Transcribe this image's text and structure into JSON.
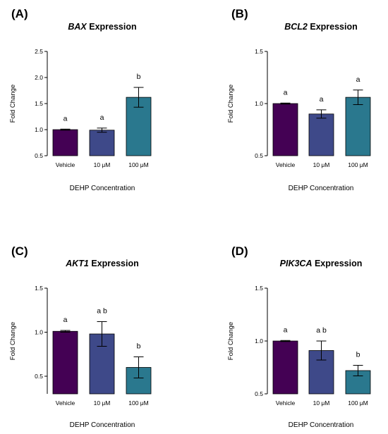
{
  "chart_data": [
    {
      "type": "bar",
      "panel": "(A)",
      "gene": "BAX",
      "title_suffix": " Expression",
      "categories": [
        "Vehicle",
        "10 μM",
        "100 μM"
      ],
      "values": [
        1.0,
        0.99,
        1.62
      ],
      "errors": [
        0.01,
        0.04,
        0.19
      ],
      "significance": [
        "a",
        "a",
        "b"
      ],
      "colors": [
        "#440154",
        "#3e4989",
        "#2a788e"
      ],
      "ylim": [
        0.5,
        2.5
      ],
      "yticks": [
        "0.5",
        "1.0",
        "1.5",
        "2.0",
        "2.5"
      ],
      "ylabel": "Fold Change",
      "xlabel": "DEHP Concentration"
    },
    {
      "type": "bar",
      "panel": "(B)",
      "gene": "BCL2",
      "title_suffix": " Expression",
      "categories": [
        "Vehicle",
        "10 μM",
        "100 μM"
      ],
      "values": [
        1.0,
        0.9,
        1.06
      ],
      "errors": [
        0.005,
        0.04,
        0.07
      ],
      "significance": [
        "a",
        "a",
        "a"
      ],
      "colors": [
        "#440154",
        "#3e4989",
        "#2a788e"
      ],
      "ylim": [
        0.5,
        1.5
      ],
      "yticks": [
        "0.5",
        "1.0",
        "1.5"
      ],
      "ylabel": "Fold Change",
      "xlabel": "DEHP Concentration"
    },
    {
      "type": "bar",
      "panel": "(C)",
      "gene": "AKT1",
      "title_suffix": " Expression",
      "categories": [
        "Vehicle",
        "10 μM",
        "100 μM"
      ],
      "values": [
        1.01,
        0.98,
        0.6
      ],
      "errors": [
        0.01,
        0.14,
        0.12
      ],
      "significance": [
        "a",
        "a b",
        "b"
      ],
      "colors": [
        "#440154",
        "#3e4989",
        "#2a788e"
      ],
      "ylim": [
        0.3,
        1.5
      ],
      "yticks": [
        "0.5",
        "1.0",
        "1.5"
      ],
      "ylabel": "Fold Change",
      "xlabel": "DEHP Concentration"
    },
    {
      "type": "bar",
      "panel": "(D)",
      "gene": "PIK3CA",
      "title_suffix": " Expression",
      "categories": [
        "Vehicle",
        "10 μM",
        "100 μM"
      ],
      "values": [
        1.0,
        0.91,
        0.72
      ],
      "errors": [
        0.005,
        0.09,
        0.05
      ],
      "significance": [
        "a",
        "a b",
        "b"
      ],
      "colors": [
        "#440154",
        "#3e4989",
        "#2a788e"
      ],
      "ylim": [
        0.5,
        1.5
      ],
      "yticks": [
        "0.5",
        "1.0",
        "1.5"
      ],
      "ylabel": "Fold Change",
      "xlabel": "DEHP Concentration"
    }
  ]
}
